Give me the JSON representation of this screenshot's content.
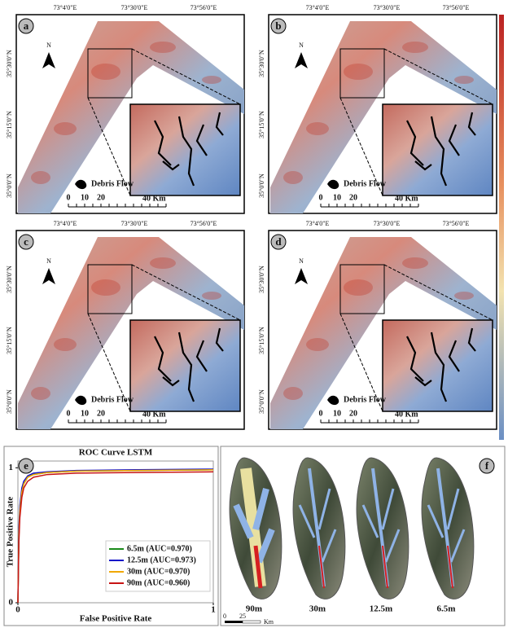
{
  "map_panels": [
    {
      "label": "a",
      "north": "N",
      "x_coords": [
        "73°4'0\"E",
        "73°30'0\"E",
        "73°56'0\"E"
      ],
      "y_coords": [
        "35°30'0\"N",
        "35°15'0\"N",
        "35°0'0\"N"
      ],
      "legend": "Debris Flow",
      "scale_labels": [
        "0",
        "10",
        "20",
        "40 Km"
      ]
    },
    {
      "label": "b",
      "north": "N",
      "x_coords": [
        "73°4'0\"E",
        "73°30'0\"E",
        "73°56'0\"E"
      ],
      "y_coords": [
        "35°30'0\"N",
        "35°15'0\"N",
        "35°0'0\"N"
      ],
      "legend": "Debris Flow",
      "scale_labels": [
        "0",
        "10",
        "20",
        "40 Km"
      ]
    },
    {
      "label": "c",
      "north": "N",
      "x_coords": [
        "73°4'0\"E",
        "73°30'0\"E",
        "73°56'0\"E"
      ],
      "y_coords": [
        "35°30'0\"N",
        "35°15'0\"N",
        "35°0'0\"N"
      ],
      "legend": "Debris Flow",
      "scale_labels": [
        "0",
        "10",
        "20",
        "40 Km"
      ]
    },
    {
      "label": "d",
      "north": "N",
      "x_coords": [
        "73°4'0\"E",
        "73°30'0\"E",
        "73°56'0\"E"
      ],
      "y_coords": [
        "35°30'0\"N",
        "35°15'0\"N",
        "35°0'0\"N"
      ],
      "legend": "Debris Flow",
      "scale_labels": [
        "0",
        "10",
        "20",
        "40 Km"
      ]
    }
  ],
  "chart_data": {
    "type": "line",
    "panel_label": "e",
    "title": "ROC Curve LSTM",
    "x_label": "False Positive Rate",
    "y_label": "True Positive Rate",
    "xlim": [
      0,
      1
    ],
    "ylim": [
      0,
      1.05
    ],
    "xticks": [
      0,
      1
    ],
    "yticks": [
      0,
      1
    ],
    "legend": "lower right",
    "x": [
      0,
      0.005,
      0.01,
      0.02,
      0.03,
      0.05,
      0.08,
      0.15,
      0.3,
      0.6,
      1
    ],
    "series": [
      {
        "name": "6.5m (AUC=0.970)",
        "color": "#1a8a1a",
        "values": [
          0,
          0.5,
          0.68,
          0.82,
          0.88,
          0.93,
          0.95,
          0.965,
          0.975,
          0.98,
          0.985
        ]
      },
      {
        "name": "12.5m (AUC=0.973)",
        "color": "#1010c8",
        "values": [
          0,
          0.55,
          0.72,
          0.85,
          0.9,
          0.94,
          0.96,
          0.97,
          0.98,
          0.985,
          0.99
        ]
      },
      {
        "name": "30m (AUC=0.970)",
        "color": "#f0a800",
        "values": [
          0,
          0.5,
          0.68,
          0.82,
          0.88,
          0.93,
          0.95,
          0.965,
          0.975,
          0.98,
          0.985
        ]
      },
      {
        "name": "90m (AUC=0.960)",
        "color": "#c81414",
        "values": [
          0,
          0.45,
          0.63,
          0.78,
          0.85,
          0.9,
          0.93,
          0.95,
          0.96,
          0.965,
          0.97
        ]
      }
    ]
  },
  "terrain_panel": {
    "label": "f",
    "resolutions": [
      "90m",
      "30m",
      "12.5m",
      "6.5m"
    ],
    "scale_labels": [
      "0",
      "25",
      "Km"
    ]
  }
}
